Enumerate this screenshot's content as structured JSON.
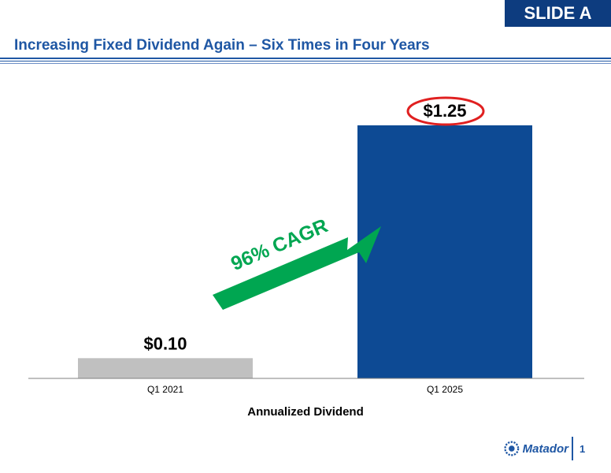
{
  "slide_tag": "SLIDE A",
  "slide_title": "Increasing Fixed Dividend Again – Six Times in Four Years",
  "arrow_label": "96% CAGR",
  "logo_text": "Matador",
  "page_number": "1",
  "colors": {
    "title_blue": "#1f57a4",
    "tag_navy": "#0d3c7f",
    "bar_2021": "#c0c0c0",
    "bar_2025": "#0d4a94",
    "arrow_green": "#00a651",
    "highlight_red": "#e02020"
  },
  "chart_data": {
    "type": "bar",
    "categories": [
      "Q1 2021",
      "Q1 2025"
    ],
    "values": [
      0.1,
      1.25
    ],
    "data_labels": [
      "$0.10",
      "$1.25"
    ],
    "title": "",
    "xlabel": "Annualized Dividend",
    "ylabel": "",
    "ylim": [
      0,
      1.25
    ],
    "grid": false,
    "highlighted_label": "$1.25"
  }
}
